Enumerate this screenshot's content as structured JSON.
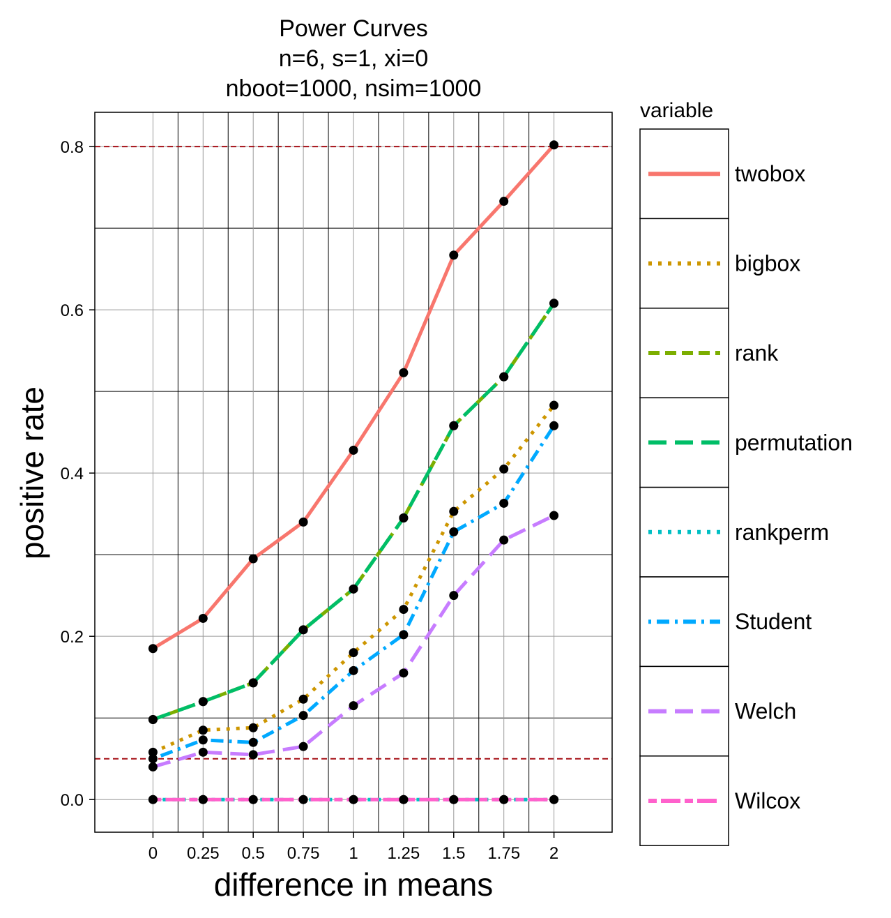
{
  "chart_data": {
    "type": "line",
    "title_lines": [
      "Power Curves",
      "n=6, s=1, xi=0",
      "nboot=1000, nsim=1000"
    ],
    "xlabel": "difference in means",
    "ylabel": "positive rate",
    "x": [
      0,
      0.25,
      0.5,
      0.75,
      1,
      1.25,
      1.5,
      1.75,
      2
    ],
    "x_tick_labels": [
      "0",
      "0.25",
      "0.5",
      "0.75",
      "1",
      "1.25",
      "1.5",
      "1.75",
      "2"
    ],
    "y_tick_labels": [
      "0.0",
      "0.2",
      "0.4",
      "0.6",
      "0.8"
    ],
    "y_ticks": [
      0,
      0.2,
      0.4,
      0.6,
      0.8
    ],
    "xlim": [
      -0.29,
      2.29
    ],
    "ylim": [
      -0.04,
      0.842
    ],
    "grid": true,
    "reference_lines": [
      0.05,
      0.8
    ],
    "reference_line_color": "#a50f15",
    "legend": {
      "title": "variable",
      "placement": "right"
    },
    "series": [
      {
        "name": "twobox",
        "color": "#f8766d",
        "dash": "solid",
        "values": [
          0.185,
          0.222,
          0.295,
          0.34,
          0.428,
          0.523,
          0.667,
          0.733,
          0.802
        ]
      },
      {
        "name": "bigbox",
        "color": "#cd9600",
        "dash": "dotted",
        "values": [
          0.058,
          0.085,
          0.088,
          0.123,
          0.18,
          0.233,
          0.353,
          0.405,
          0.483
        ]
      },
      {
        "name": "rank",
        "color": "#7cae00",
        "dash": "dashed",
        "values": [
          0.098,
          0.12,
          0.143,
          0.208,
          0.258,
          0.345,
          0.458,
          0.518,
          0.608
        ]
      },
      {
        "name": "permutation",
        "color": "#00be67",
        "dash": "longdash",
        "values": [
          0.098,
          0.12,
          0.143,
          0.208,
          0.258,
          0.345,
          0.458,
          0.518,
          0.608
        ]
      },
      {
        "name": "rankperm",
        "color": "#00bfc4",
        "dash": "dotted",
        "values": [
          0,
          0,
          0,
          0,
          0,
          0,
          0,
          0,
          0
        ]
      },
      {
        "name": "Student",
        "color": "#00a9ff",
        "dash": "dotdash",
        "values": [
          0.05,
          0.073,
          0.07,
          0.103,
          0.158,
          0.202,
          0.328,
          0.363,
          0.458
        ]
      },
      {
        "name": "Welch",
        "color": "#c77cff",
        "dash": "longdash",
        "values": [
          0.04,
          0.058,
          0.055,
          0.065,
          0.115,
          0.155,
          0.25,
          0.318,
          0.348
        ]
      },
      {
        "name": "Wilcox",
        "color": "#ff61cc",
        "dash": "twodash",
        "values": [
          0,
          0,
          0,
          0,
          0,
          0,
          0,
          0,
          0
        ]
      }
    ]
  }
}
